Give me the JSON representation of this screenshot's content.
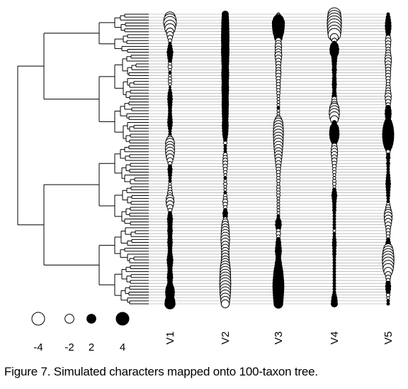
{
  "chart_data": {
    "type": "scatter",
    "description": "Phylogenetic tree with 100 tips; five simulated continuous characters drawn as circles whose area scales with absolute value, black = positive, white = negative.",
    "n_taxa": 100,
    "columns": [
      "V1",
      "V2",
      "V3",
      "V4",
      "V5"
    ],
    "legend": {
      "values": [
        -4,
        -2,
        2,
        4
      ],
      "labels": [
        "-4",
        "-2",
        "2",
        "4"
      ],
      "negative_fill": "#ffffff",
      "positive_fill": "#000000"
    },
    "series": [
      {
        "name": "V1",
        "values": [
          0.3,
          -2.7,
          -3.8,
          -4.1,
          -3.2,
          -2.6,
          -1.4,
          -1.0,
          -0.6,
          -0.3,
          0.2,
          0.4,
          0.6,
          0.9,
          0.7,
          0.5,
          0.3,
          -0.3,
          -0.4,
          -0.2,
          0.2,
          -0.2,
          -0.3,
          -0.3,
          -0.2,
          0.1,
          0.2,
          0.4,
          0.5,
          0.6,
          0.5,
          0.4,
          0.3,
          0.3,
          0.3,
          0.4,
          0.5,
          0.6,
          0.5,
          0.3,
          0.2,
          0.2,
          -0.4,
          -1.3,
          -2.0,
          -1.9,
          -2.1,
          -2.0,
          -1.7,
          -1.3,
          -0.8,
          -0.4,
          0.3,
          0.5,
          0.4,
          0.3,
          0.2,
          0.2,
          -0.2,
          -0.3,
          -0.4,
          -0.6,
          -0.8,
          -1.4,
          -1.6,
          -1.3,
          -0.8,
          -0.4,
          0.3,
          0.5,
          0.7,
          0.6,
          0.5,
          0.5,
          0.6,
          0.5,
          0.4,
          0.5,
          0.6,
          0.5,
          0.4,
          0.4,
          0.5,
          0.7,
          0.9,
          0.8,
          0.6,
          0.5,
          0.5,
          0.7,
          0.8,
          0.6,
          0.6,
          1.0,
          1.7,
          2.0,
          1.8,
          1.6,
          2.3,
          2.6
        ]
      },
      {
        "name": "V2",
        "values": [
          1.0,
          1.1,
          1.2,
          1.3,
          1.3,
          1.4,
          1.4,
          1.5,
          1.5,
          1.5,
          1.4,
          1.4,
          1.5,
          1.5,
          1.4,
          1.3,
          1.3,
          1.2,
          1.1,
          1.2,
          1.3,
          1.3,
          1.2,
          1.1,
          1.1,
          1.2,
          1.2,
          1.1,
          1.0,
          1.0,
          1.1,
          1.1,
          1.0,
          1.0,
          1.0,
          0.9,
          0.8,
          0.9,
          1.0,
          0.9,
          0.8,
          0.7,
          0.5,
          0.3,
          -0.3,
          0.2,
          0.2,
          0.2,
          -0.4,
          -0.5,
          -0.6,
          -0.6,
          -0.5,
          -0.4,
          -0.3,
          -0.2,
          0.2,
          -0.2,
          -0.3,
          -0.2,
          -0.2,
          0.2,
          -0.3,
          -0.4,
          -0.6,
          -0.5,
          -0.3,
          0.3,
          0.6,
          0.5,
          -0.4,
          -0.9,
          -1.2,
          -1.4,
          -1.6,
          -1.7,
          -1.8,
          -1.9,
          -1.8,
          -1.6,
          -1.5,
          -1.4,
          -1.4,
          -1.5,
          -1.6,
          -1.8,
          -2.2,
          -2.5,
          -2.7,
          -2.8,
          -2.9,
          -3.0,
          -3.1,
          -3.0,
          -2.9,
          -2.8,
          -2.6,
          -2.3,
          -2.0,
          -1.6
        ]
      },
      {
        "name": "V3",
        "values": [
          -0.2,
          -1.0,
          2.6,
          3.7,
          3.6,
          3.3,
          2.8,
          2.0,
          1.5,
          -0.8,
          -0.9,
          -1.1,
          -1.0,
          -1.1,
          -1.2,
          -1.0,
          -0.8,
          -0.7,
          -0.6,
          -0.6,
          -0.7,
          -0.6,
          -0.5,
          -0.4,
          -0.4,
          -0.4,
          -0.3,
          -0.3,
          -0.2,
          -0.2,
          -0.2,
          -0.2,
          0.2,
          -0.2,
          -0.2,
          -0.3,
          -1.1,
          -1.9,
          -2.2,
          -2.4,
          -2.5,
          -2.5,
          -2.4,
          -2.3,
          -2.2,
          -2.0,
          -1.8,
          -1.6,
          -1.4,
          -1.2,
          -1.0,
          -0.8,
          -0.6,
          -0.5,
          -0.4,
          -0.3,
          -0.3,
          -0.3,
          -0.2,
          -0.3,
          -0.3,
          -0.3,
          -0.3,
          -0.2,
          -0.2,
          -0.2,
          -0.2,
          -0.2,
          -0.2,
          0.2,
          0.3,
          0.8,
          0.9,
          0.6,
          -0.4,
          -0.5,
          -0.3,
          0.4,
          0.6,
          0.7,
          0.9,
          1.0,
          0.8,
          0.6,
          0.7,
          1.0,
          1.2,
          1.6,
          2.0,
          2.3,
          2.5,
          2.8,
          3.0,
          3.1,
          3.0,
          2.8,
          2.6,
          2.4,
          2.2,
          1.9
        ]
      },
      {
        "name": "V4",
        "values": [
          -4.0,
          -4.5,
          -4.9,
          -5.0,
          -4.9,
          -4.7,
          -4.3,
          -3.8,
          -1.6,
          -0.6,
          0.5,
          1.5,
          2.0,
          1.8,
          1.0,
          0.7,
          0.6,
          0.5,
          0.4,
          0.5,
          0.4,
          0.3,
          0.4,
          0.4,
          0.5,
          0.4,
          0.3,
          0.4,
          0.5,
          -0.6,
          -0.8,
          -1.2,
          -2.1,
          -2.5,
          -2.6,
          -2.3,
          -1.5,
          0.4,
          0.8,
          1.8,
          2.2,
          2.3,
          2.0,
          1.3,
          0.6,
          -0.7,
          -1.0,
          -1.1,
          -1.0,
          -0.8,
          -0.7,
          -0.5,
          -0.4,
          -0.3,
          -0.3,
          -0.2,
          -0.2,
          -0.3,
          -0.3,
          -0.2,
          0.3,
          0.5,
          0.7,
          0.5,
          0.4,
          0.3,
          0.3,
          0.3,
          0.2,
          0.2,
          0.2,
          0.2,
          0.2,
          0.2,
          -0.2,
          0.2,
          0.2,
          0.3,
          0.4,
          0.4,
          0.3,
          0.3,
          0.3,
          0.2,
          0.2,
          0.2,
          0.2,
          0.2,
          0.2,
          0.2,
          0.2,
          0.2,
          0.2,
          0.2,
          0.2,
          0.2,
          0.4,
          0.7,
          0.9,
          1.0
        ]
      },
      {
        "name": "V5",
        "values": [
          0.2,
          0.4,
          0.6,
          0.8,
          0.9,
          0.8,
          0.6,
          0.4,
          -0.6,
          -0.8,
          -0.7,
          -0.6,
          -0.5,
          -0.6,
          -0.8,
          -1.0,
          -1.1,
          -0.9,
          -0.8,
          -0.7,
          -0.6,
          -0.6,
          -0.5,
          -0.4,
          -0.4,
          -0.5,
          -0.6,
          -0.8,
          -1.0,
          -0.9,
          -0.7,
          -0.5,
          0.6,
          0.9,
          1.0,
          0.8,
          0.6,
          1.3,
          2.0,
          2.6,
          3.0,
          3.2,
          3.1,
          2.8,
          2.3,
          1.6,
          0.8,
          -0.4,
          0.3,
          0.4,
          0.2,
          0.3,
          0.2,
          0.2,
          0.2,
          0.3,
          0.4,
          0.5,
          0.6,
          0.5,
          0.4,
          0.3,
          0.3,
          0.2,
          0.2,
          -0.3,
          -0.6,
          -0.9,
          -1.4,
          -1.6,
          -1.5,
          -1.2,
          -0.9,
          -0.6,
          -0.5,
          -0.4,
          -0.3,
          0.3,
          0.5,
          0.8,
          -1.9,
          -2.6,
          -3.0,
          -3.3,
          -3.4,
          -3.3,
          -3.0,
          -2.6,
          -1.8,
          -0.9,
          -0.6,
          -0.4,
          0.5,
          0.7,
          0.6,
          0.4,
          -0.3,
          -0.2,
          0.2,
          0.2
        ]
      }
    ]
  },
  "caption": "Figure 7. Simulated characters mapped onto 100-taxon tree."
}
